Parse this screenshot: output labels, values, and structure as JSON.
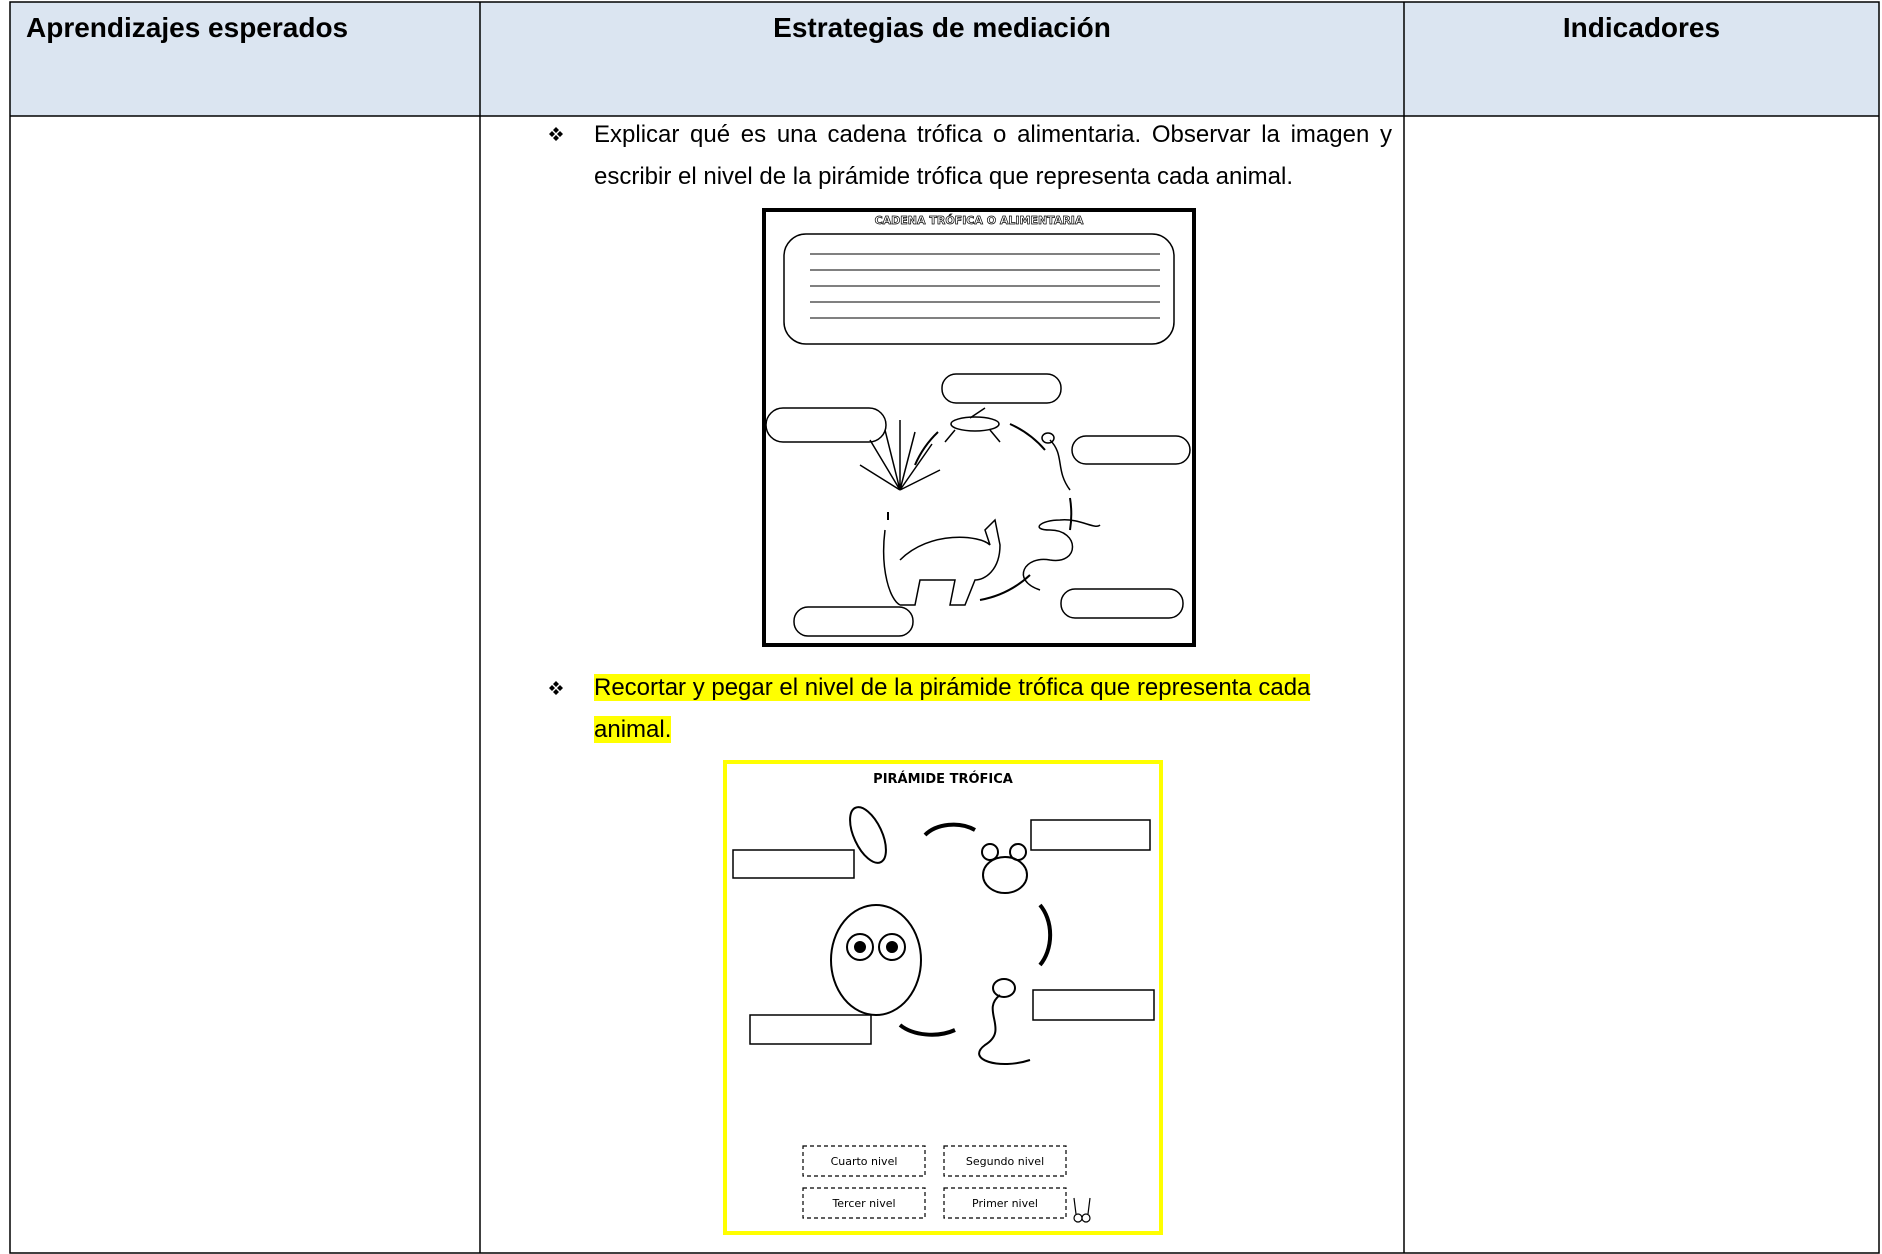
{
  "table": {
    "headers": [
      "Aprendizajes esperados",
      "Estrategias de mediación",
      "Indicadores"
    ],
    "mediation": {
      "items": [
        {
          "text": "Explicar qué es una cadena trófica o alimentaria. Observar la imagen y escribir el nivel de la pirámide trófica que representa cada animal.",
          "figure": {
            "title": "CADENA TRÓFICA O ALIMENTARIA"
          }
        },
        {
          "text": "Recortar y pegar el nivel de la pirámide trófica que representa cada animal.",
          "figure": {
            "title": "PIRÁMIDE TRÓFICA",
            "labels": [
              "Cuarto nivel",
              "Segundo nivel",
              "Tercer nivel",
              "Primer nivel"
            ]
          }
        }
      ]
    }
  }
}
